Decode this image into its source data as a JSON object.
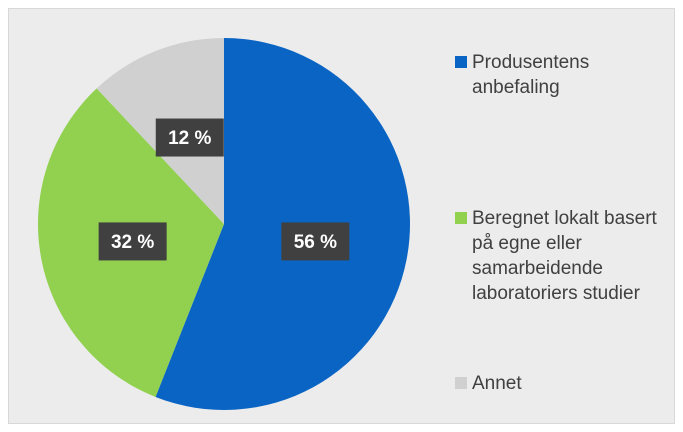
{
  "chart_data": {
    "type": "pie",
    "categories": [
      "Produsentens anbefaling",
      "Beregnet lokalt basert på egne eller samarbeidende laboratoriers studier",
      "Annet"
    ],
    "values": [
      56,
      32,
      12
    ],
    "value_labels": [
      "56 %",
      "32 %",
      "12 %"
    ],
    "colors": [
      "#0a64c4",
      "#92d050",
      "#d0d0d0"
    ]
  }
}
